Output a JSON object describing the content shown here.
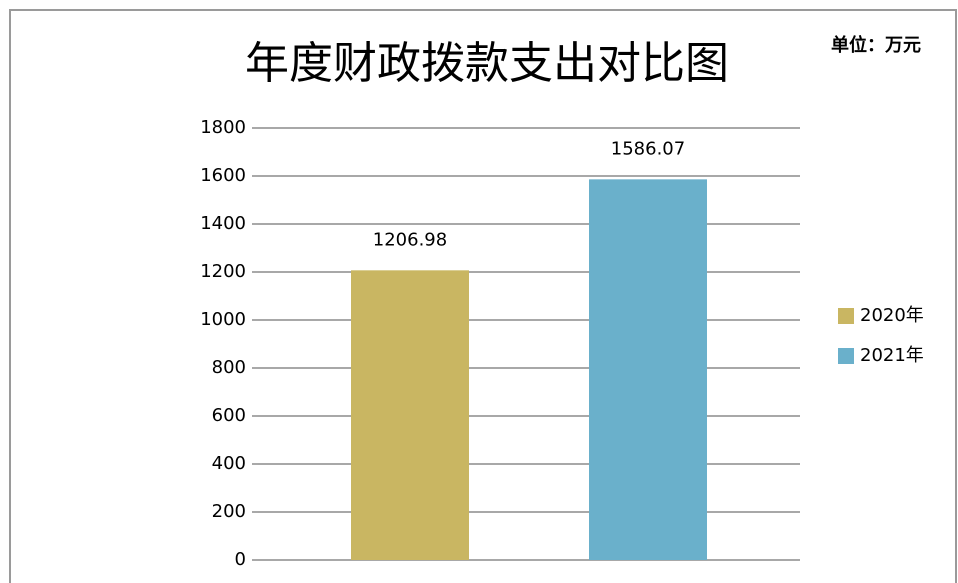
{
  "chart_data": {
    "type": "bar",
    "title": "年度财政拨款支出对比图",
    "annotation": "单位：万元",
    "categories": [
      null
    ],
    "series": [
      {
        "name": "2020年",
        "color": "#c9b662",
        "values": [
          1206.98
        ]
      },
      {
        "name": "2021年",
        "color": "#6ab0cb",
        "values": [
          1586.07
        ]
      }
    ],
    "ylim": [
      0,
      1800
    ],
    "yticks": [
      0,
      200,
      400,
      600,
      800,
      1000,
      1200,
      1400,
      1600,
      1800
    ],
    "grid": true,
    "legend": "right"
  }
}
